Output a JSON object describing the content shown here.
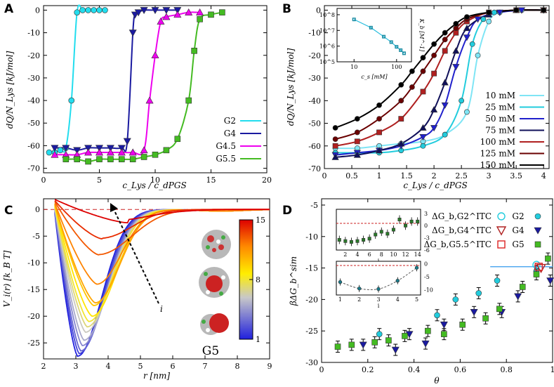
{
  "figure": {
    "panels": [
      "A",
      "B",
      "C",
      "D"
    ],
    "inset_label_C": "G5"
  },
  "chart_data": [
    {
      "panel": "A",
      "type": "line",
      "xlabel": "c_Lys / c_dPGS",
      "ylabel": "dQ/N_Lys [kJ/mol]",
      "xlim": [
        0,
        20
      ],
      "ylim": [
        -72,
        2
      ],
      "xticks": [
        "0",
        "5",
        "10",
        "15",
        "20"
      ],
      "yticks": [
        "0",
        "-10",
        "-20",
        "-30",
        "-40",
        "-50",
        "-60",
        "-70"
      ],
      "series": [
        {
          "name": "G2",
          "color": "#22ddee",
          "marker": "circle",
          "x": [
            0.5,
            1,
            1.5,
            2,
            2.5,
            3,
            3.5,
            4,
            4.5,
            5,
            5.5
          ],
          "y": [
            -63,
            -63,
            -62,
            -61,
            -40,
            -1,
            0,
            0,
            0,
            0,
            0
          ]
        },
        {
          "name": "G4",
          "color": "#1a1aa0",
          "marker": "triangle-down",
          "x": [
            1,
            2,
            3,
            4,
            5,
            6,
            7,
            7.5,
            8,
            8.2,
            8.5,
            9,
            10,
            11,
            12
          ],
          "y": [
            -61,
            -61,
            -62,
            -61,
            -61,
            -61,
            -61,
            -58,
            -10,
            -2,
            -1,
            0,
            0,
            0,
            0
          ]
        },
        {
          "name": "G4.5",
          "color": "#ee00ee",
          "marker": "triangle-up",
          "x": [
            1,
            2,
            3,
            4,
            5,
            6,
            7,
            8,
            9,
            9.5,
            10,
            10.5,
            11,
            12,
            13,
            14
          ],
          "y": [
            -64,
            -64,
            -64,
            -63,
            -63,
            -63,
            -63,
            -63,
            -62,
            -40,
            -20,
            -5,
            -3,
            -2,
            -1,
            -1
          ]
        },
        {
          "name": "G5.5",
          "color": "#44bb22",
          "marker": "square",
          "x": [
            2,
            3,
            4,
            5,
            6,
            7,
            8,
            9,
            10,
            11,
            12,
            13,
            13.5,
            14,
            15,
            16
          ],
          "y": [
            -66,
            -66,
            -67,
            -66,
            -66,
            -66,
            -66,
            -65,
            -64,
            -62,
            -57,
            -40,
            -18,
            -4,
            -2,
            -1
          ]
        }
      ]
    },
    {
      "panel": "B",
      "type": "line",
      "xlabel": "c_Lys / c_dPGS",
      "ylabel": "dQ/N_Lys [kJ/mol]",
      "xlim": [
        0,
        4.1
      ],
      "ylim": [
        -70,
        2
      ],
      "xticks": [
        "0",
        "0.5",
        "1",
        "1.5",
        "2",
        "2.5",
        "3",
        "3.5",
        "4"
      ],
      "yticks": [
        "0",
        "-10",
        "-20",
        "-30",
        "-40",
        "-50",
        "-60",
        "-70"
      ],
      "series": [
        {
          "name": "10 mM",
          "color": "#7fe5f5",
          "marker": "circle",
          "x": [
            0.2,
            0.6,
            1,
            1.4,
            1.8,
            2.2,
            2.6,
            2.8,
            3,
            3.2,
            3.6,
            4
          ],
          "y": [
            -61,
            -61,
            -60,
            -59,
            -58,
            -55,
            -45,
            -20,
            -5,
            -1,
            0,
            0
          ]
        },
        {
          "name": "25 mM",
          "color": "#22ccdd",
          "marker": "circle",
          "x": [
            0.2,
            0.6,
            1,
            1.4,
            1.8,
            2.2,
            2.5,
            2.7,
            2.9,
            3.1,
            3.5,
            4
          ],
          "y": [
            -63,
            -63,
            -63,
            -62,
            -60,
            -55,
            -40,
            -15,
            -4,
            -1,
            0,
            0
          ]
        },
        {
          "name": "50 mM",
          "color": "#2020cc",
          "marker": "triangle-down",
          "x": [
            0.2,
            0.6,
            1,
            1.4,
            1.8,
            2,
            2.2,
            2.4,
            2.6,
            2.8,
            3.2,
            3.6,
            4
          ],
          "y": [
            -64,
            -63,
            -62,
            -60,
            -56,
            -52,
            -42,
            -25,
            -12,
            -4,
            -1,
            0,
            0
          ]
        },
        {
          "name": "75 mM",
          "color": "#10105a",
          "marker": "triangle-up",
          "x": [
            0.2,
            0.6,
            1,
            1.4,
            1.8,
            2,
            2.2,
            2.4,
            2.6,
            3,
            3.5,
            4
          ],
          "y": [
            -65,
            -64,
            -62,
            -59,
            -52,
            -44,
            -32,
            -18,
            -8,
            -2,
            0,
            0
          ]
        },
        {
          "name": "100 mM",
          "color": "#b02020",
          "marker": "square",
          "x": [
            0.2,
            0.6,
            1,
            1.4,
            1.8,
            2,
            2.2,
            2.4,
            2.6,
            3,
            3.5,
            4
          ],
          "y": [
            -60,
            -58,
            -54,
            -48,
            -36,
            -28,
            -18,
            -10,
            -5,
            -1,
            0,
            0
          ]
        },
        {
          "name": "125 mM",
          "color": "#6a0000",
          "marker": "circle",
          "x": [
            0.2,
            0.6,
            1,
            1.4,
            1.6,
            1.8,
            2,
            2.2,
            2.4,
            2.6,
            3,
            3.5,
            4
          ],
          "y": [
            -57,
            -54,
            -48,
            -40,
            -34,
            -27,
            -20,
            -13,
            -8,
            -4,
            -1,
            0,
            0
          ]
        },
        {
          "name": "150 mM",
          "color": "#000000",
          "marker": "circle",
          "x": [
            0.2,
            0.6,
            1,
            1.4,
            1.6,
            1.8,
            2,
            2.2,
            2.4,
            2.6,
            3,
            3.5,
            4
          ],
          "y": [
            -52,
            -48,
            -42,
            -33,
            -27,
            -21,
            -15,
            -10,
            -6,
            -3,
            -1,
            0,
            0
          ]
        }
      ],
      "inset": {
        "xlabel": "c_s [mM]",
        "ylabel": "K_b [M^-1]",
        "xscale": "log",
        "yscale": "log",
        "xticks": [
          "10",
          "100"
        ],
        "yticks": [
          "10^5",
          "10^6",
          "10^7",
          "10^8"
        ],
        "points": [
          {
            "x": 10,
            "y": 50000000
          },
          {
            "x": 25,
            "y": 15000000
          },
          {
            "x": 50,
            "y": 4000000
          },
          {
            "x": 75,
            "y": 1800000
          },
          {
            "x": 100,
            "y": 900000
          },
          {
            "x": 125,
            "y": 550000
          },
          {
            "x": 150,
            "y": 350000
          }
        ]
      }
    },
    {
      "panel": "C",
      "type": "line",
      "xlabel": "r [nm]",
      "ylabel": "V_i(r) [k_B T]",
      "xlim": [
        2,
        9
      ],
      "ylim": [
        -28,
        2
      ],
      "xticks": [
        "2",
        "3",
        "4",
        "5",
        "6",
        "7",
        "8",
        "9"
      ],
      "yticks": [
        "0",
        "-5",
        "-10",
        "-15",
        "-20",
        "-25"
      ],
      "arrow_label": "i",
      "colorbar": {
        "min": "1",
        "mid": "8",
        "max": "15",
        "colors": [
          "#2020dd",
          "#c8c8c8",
          "#ffee00",
          "#ff8800",
          "#dd0000"
        ]
      },
      "curves": [
        {
          "i": 1,
          "min_r": 3.05,
          "min_v": -27.5
        },
        {
          "i": 2,
          "min_r": 3.1,
          "min_v": -27
        },
        {
          "i": 3,
          "min_r": 3.15,
          "min_v": -26.5
        },
        {
          "i": 4,
          "min_r": 3.2,
          "min_v": -25.5
        },
        {
          "i": 5,
          "min_r": 3.25,
          "min_v": -24.5
        },
        {
          "i": 6,
          "min_r": 3.3,
          "min_v": -23
        },
        {
          "i": 7,
          "min_r": 3.35,
          "min_v": -22
        },
        {
          "i": 8,
          "min_r": 3.4,
          "min_v": -21
        },
        {
          "i": 9,
          "min_r": 3.5,
          "min_v": -20
        },
        {
          "i": 10,
          "min_r": 3.55,
          "min_v": -18
        },
        {
          "i": 11,
          "min_r": 3.6,
          "min_v": -17.5
        },
        {
          "i": 12,
          "min_r": 3.65,
          "min_v": -14
        },
        {
          "i": 13,
          "min_r": 3.7,
          "min_v": -8.5
        },
        {
          "i": 14,
          "min_r": 3.8,
          "min_v": -5.5
        },
        {
          "i": 15,
          "min_r": 4.6,
          "min_v": -2.5
        }
      ]
    },
    {
      "panel": "D",
      "type": "scatter",
      "xlabel": "θ",
      "ylabel": "βΔG_b^sim",
      "xlim": [
        0,
        1
      ],
      "ylim": [
        -30,
        -4
      ],
      "xticks": [
        "0",
        "0.2",
        "0.4",
        "0.6",
        "0.8",
        "1"
      ],
      "yticks": [
        "-5",
        "-10",
        "-15",
        "-20",
        "-25",
        "-30"
      ],
      "legend": [
        {
          "label": "ΔG_b,G2^ITC",
          "name": "G2",
          "color": "#22ccdd",
          "marker": "circle"
        },
        {
          "label": "ΔG_b,G4^ITC",
          "name": "G4",
          "color": "#b02020",
          "marker": "triangle-down"
        },
        {
          "label": "ΔG_b,G5.5^ITC",
          "name": "G5",
          "color": "#dd2222",
          "marker": "square"
        }
      ],
      "series": [
        {
          "name": "G2",
          "color": "#22ccdd",
          "marker": "circle",
          "x": [
            0.25,
            0.5,
            0.58,
            0.68,
            0.76,
            0.93
          ],
          "y": [
            -25.5,
            -22.5,
            -20.0,
            -19.0,
            -17.0,
            -15.5
          ]
        },
        {
          "name": "G4",
          "color": "#1a1aa0",
          "marker": "triangle-down",
          "x": [
            0.18,
            0.32,
            0.38,
            0.45,
            0.53,
            0.66,
            0.78,
            0.85,
            0.99
          ],
          "y": [
            -27.2,
            -28.0,
            -25.5,
            -27.0,
            -24.0,
            -22.0,
            -22.0,
            -19.5,
            -17.0
          ]
        },
        {
          "name": "G5",
          "color": "#44bb22",
          "marker": "square",
          "x": [
            0.07,
            0.13,
            0.23,
            0.29,
            0.36,
            0.46,
            0.53,
            0.61,
            0.71,
            0.77,
            0.87,
            0.93,
            0.98
          ],
          "y": [
            -27.5,
            -27.2,
            -26.8,
            -26.5,
            -25.8,
            -25.0,
            -25.5,
            -24.0,
            -23.0,
            -21.5,
            -18.0,
            -16.0,
            -13.5
          ]
        }
      ],
      "itc_points": [
        {
          "name": "G2",
          "x": 0.93,
          "y": -14.5
        },
        {
          "name": "G4",
          "x": 0.95,
          "y": -15.0
        },
        {
          "name": "G5.5",
          "x": 0.94,
          "y": -14.8
        }
      ],
      "inset1": {
        "xlabel": "i",
        "xticks": [
          "2",
          "4",
          "6",
          "8",
          "10",
          "12",
          "14"
        ],
        "yticks": [
          "3",
          "0",
          "-3",
          "-6"
        ]
      },
      "inset2": {
        "xlabel": "i",
        "xticks": [
          "1",
          "2",
          "3",
          "4",
          "5"
        ],
        "yticks": [
          "0",
          "-5",
          "-10"
        ]
      }
    }
  ]
}
